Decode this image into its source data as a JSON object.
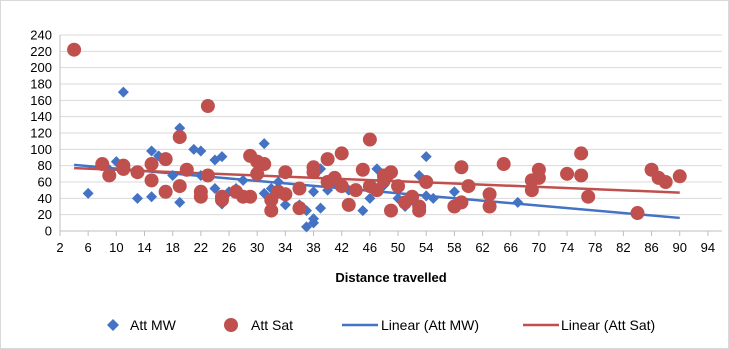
{
  "chart_data": {
    "type": "scatter",
    "title": "",
    "xlabel": "Distance travelled",
    "ylabel": "",
    "xlim": [
      2,
      96
    ],
    "ylim": [
      0,
      240
    ],
    "x_ticks": [
      2,
      6,
      10,
      14,
      18,
      22,
      26,
      30,
      34,
      38,
      42,
      46,
      50,
      54,
      58,
      62,
      66,
      70,
      74,
      78,
      82,
      86,
      90,
      94
    ],
    "y_ticks": [
      0,
      20,
      40,
      60,
      80,
      100,
      120,
      140,
      160,
      180,
      200,
      220,
      240
    ],
    "grid": "horizontal",
    "legend_position": "bottom",
    "colors": {
      "att_mw": "#4472C4",
      "att_sat": "#C0504D",
      "grid": "#d9d9d9",
      "axis": "#bfbfbf"
    },
    "series": [
      {
        "name": "Att MW",
        "marker": "diamond",
        "points": [
          [
            6,
            46
          ],
          [
            9,
            75
          ],
          [
            10,
            85
          ],
          [
            11,
            170
          ],
          [
            11,
            76
          ],
          [
            13,
            40
          ],
          [
            15,
            98
          ],
          [
            15,
            42
          ],
          [
            16,
            92
          ],
          [
            18,
            68
          ],
          [
            19,
            126
          ],
          [
            19,
            35
          ],
          [
            20,
            75
          ],
          [
            21,
            100
          ],
          [
            22,
            98
          ],
          [
            22,
            68
          ],
          [
            24,
            87
          ],
          [
            24,
            52
          ],
          [
            25,
            91
          ],
          [
            25,
            33
          ],
          [
            26,
            48
          ],
          [
            27,
            52
          ],
          [
            28,
            62
          ],
          [
            29,
            42
          ],
          [
            30,
            68
          ],
          [
            31,
            46
          ],
          [
            31,
            107
          ],
          [
            32,
            52
          ],
          [
            33,
            60
          ],
          [
            34,
            47
          ],
          [
            34,
            32
          ],
          [
            36,
            32
          ],
          [
            37,
            25
          ],
          [
            37,
            5
          ],
          [
            38,
            10
          ],
          [
            38,
            15
          ],
          [
            38,
            48
          ],
          [
            39,
            28
          ],
          [
            39,
            76
          ],
          [
            40,
            50
          ],
          [
            41,
            60
          ],
          [
            42,
            55
          ],
          [
            43,
            50
          ],
          [
            44,
            48
          ],
          [
            45,
            25
          ],
          [
            46,
            40
          ],
          [
            47,
            76
          ],
          [
            48,
            56
          ],
          [
            49,
            68
          ],
          [
            50,
            52
          ],
          [
            50,
            40
          ],
          [
            51,
            30
          ],
          [
            52,
            38
          ],
          [
            53,
            68
          ],
          [
            53,
            28
          ],
          [
            54,
            91
          ],
          [
            54,
            43
          ],
          [
            55,
            40
          ],
          [
            58,
            48
          ],
          [
            67,
            35
          ]
        ]
      },
      {
        "name": "Att Sat",
        "marker": "circle",
        "points": [
          [
            4,
            222
          ],
          [
            8,
            82
          ],
          [
            9,
            68
          ],
          [
            11,
            80
          ],
          [
            11,
            76
          ],
          [
            13,
            72
          ],
          [
            15,
            82
          ],
          [
            15,
            62
          ],
          [
            17,
            48
          ],
          [
            17,
            88
          ],
          [
            19,
            115
          ],
          [
            19,
            55
          ],
          [
            20,
            75
          ],
          [
            22,
            48
          ],
          [
            22,
            42
          ],
          [
            23,
            153
          ],
          [
            23,
            68
          ],
          [
            25,
            42
          ],
          [
            25,
            38
          ],
          [
            27,
            48
          ],
          [
            28,
            42
          ],
          [
            29,
            92
          ],
          [
            29,
            42
          ],
          [
            30,
            85
          ],
          [
            30,
            70
          ],
          [
            31,
            82
          ],
          [
            32,
            38
          ],
          [
            32,
            25
          ],
          [
            33,
            48
          ],
          [
            34,
            45
          ],
          [
            34,
            72
          ],
          [
            36,
            52
          ],
          [
            36,
            28
          ],
          [
            38,
            78
          ],
          [
            38,
            72
          ],
          [
            40,
            88
          ],
          [
            40,
            60
          ],
          [
            41,
            65
          ],
          [
            42,
            95
          ],
          [
            42,
            55
          ],
          [
            43,
            32
          ],
          [
            44,
            50
          ],
          [
            45,
            75
          ],
          [
            46,
            112
          ],
          [
            46,
            55
          ],
          [
            47,
            50
          ],
          [
            48,
            68
          ],
          [
            48,
            62
          ],
          [
            49,
            72
          ],
          [
            49,
            25
          ],
          [
            50,
            55
          ],
          [
            51,
            35
          ],
          [
            52,
            42
          ],
          [
            53,
            25
          ],
          [
            53,
            30
          ],
          [
            54,
            60
          ],
          [
            58,
            30
          ],
          [
            59,
            35
          ],
          [
            59,
            78
          ],
          [
            60,
            55
          ],
          [
            63,
            45
          ],
          [
            63,
            30
          ],
          [
            65,
            82
          ],
          [
            69,
            62
          ],
          [
            69,
            50
          ],
          [
            70,
            75
          ],
          [
            70,
            65
          ],
          [
            74,
            70
          ],
          [
            76,
            95
          ],
          [
            76,
            68
          ],
          [
            77,
            42
          ],
          [
            84,
            22
          ],
          [
            86,
            75
          ],
          [
            87,
            65
          ],
          [
            88,
            60
          ],
          [
            90,
            67
          ]
        ]
      }
    ],
    "trendlines": [
      {
        "name": "Linear (Att MW)",
        "series": "Att MW",
        "x": [
          4,
          90
        ],
        "y": [
          81,
          16
        ]
      },
      {
        "name": "Linear (Att Sat)",
        "series": "Att Sat",
        "x": [
          4,
          90
        ],
        "y": [
          77,
          47
        ]
      }
    ],
    "legend": [
      "Att MW",
      "Att Sat",
      "Linear (Att MW)",
      "Linear (Att Sat)"
    ]
  }
}
